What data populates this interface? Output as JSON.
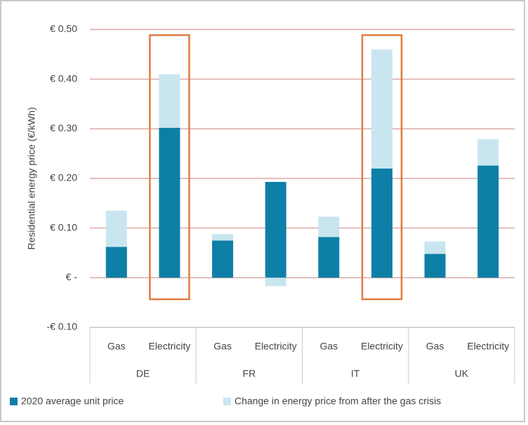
{
  "chart_data": {
    "type": "stacked_bar",
    "y_label": "Residential energy price (€/kWh)",
    "categories": [
      "Gas",
      "Electricity",
      "Gas",
      "Electricity",
      "Gas",
      "Electricity",
      "Gas",
      "Electricity"
    ],
    "groups": [
      "DE",
      "FR",
      "IT",
      "UK"
    ],
    "series": [
      {
        "name": "2020 average unit price",
        "color": "#0e7fa6",
        "values": [
          0.062,
          0.302,
          0.075,
          0.193,
          0.082,
          0.22,
          0.048,
          0.226
        ]
      },
      {
        "name": "Change in energy price from after the gas crisis",
        "color": "#c9e6f0",
        "values": [
          0.073,
          0.108,
          0.013,
          -0.017,
          0.041,
          0.24,
          0.025,
          0.053
        ]
      }
    ],
    "ylim": [
      -0.1,
      0.5
    ],
    "yticks": [
      {
        "value": -0.1,
        "label": "-€ 0.10"
      },
      {
        "value": 0,
        "label": "€ -"
      },
      {
        "value": 0.1,
        "label": "€ 0.10"
      },
      {
        "value": 0.2,
        "label": "€ 0.20"
      },
      {
        "value": 0.3,
        "label": "€ 0.30"
      },
      {
        "value": 0.4,
        "label": "€ 0.40"
      },
      {
        "value": 0.5,
        "label": "€ 0.50"
      }
    ],
    "grid": true,
    "highlighted": [
      1,
      5
    ],
    "highlight_color": "#e07b3c",
    "legend": "bottom"
  }
}
